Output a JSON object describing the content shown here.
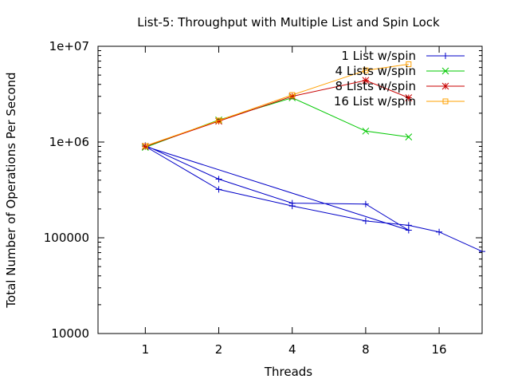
{
  "chart_data": {
    "type": "line",
    "title": "List-5: Throughput with Multiple List and Spin Lock",
    "xlabel": "Threads",
    "ylabel": "Total Number of Operations Per Second",
    "x_scale": "log2",
    "y_scale": "log10",
    "xlim": [
      0.64,
      24
    ],
    "ylim": [
      10000,
      10000000
    ],
    "x_ticks": [
      1,
      2,
      4,
      8,
      16
    ],
    "x_tick_labels": [
      "1",
      "2",
      "4",
      "8",
      "16"
    ],
    "y_ticks": [
      10000,
      100000,
      1000000,
      10000000
    ],
    "y_tick_labels": [
      "10000",
      "100000",
      "1e+06",
      "1e+07"
    ],
    "grid": false,
    "legend_position": "top-right",
    "series": [
      {
        "name": "1 List w/spin",
        "color": "#0000c8",
        "marker": "plus",
        "x": [
          1,
          2,
          4,
          8,
          12,
          1,
          2,
          4,
          8,
          12,
          16,
          24
        ],
        "y": [
          920000,
          410000,
          230000,
          225000,
          120000,
          900000,
          320000,
          215000,
          150000,
          135000,
          115000,
          72000
        ]
      },
      {
        "name": "4 Lists w/spin",
        "color": "#00c800",
        "marker": "cross",
        "x": [
          1,
          2,
          4,
          8,
          12
        ],
        "y": [
          880000,
          1700000,
          2900000,
          1300000,
          1130000
        ]
      },
      {
        "name": "8 Lists w/spin",
        "color": "#c80000",
        "marker": "star",
        "x": [
          1,
          2,
          4,
          8,
          12
        ],
        "y": [
          900000,
          1650000,
          3000000,
          4400000,
          2900000
        ]
      },
      {
        "name": "16 List w/spin",
        "color": "#ffa000",
        "marker": "square",
        "x": [
          1,
          2,
          4,
          8,
          12
        ],
        "y": [
          910000,
          1680000,
          3100000,
          5600000,
          6500000
        ]
      }
    ]
  }
}
